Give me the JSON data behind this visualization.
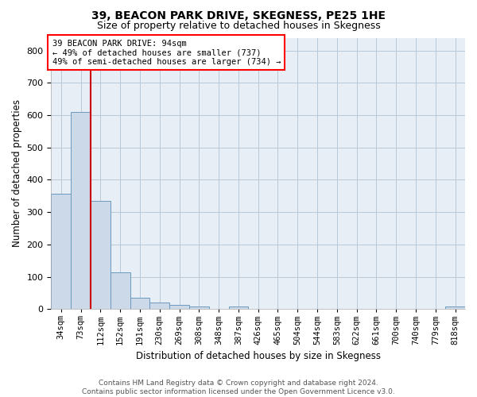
{
  "title": "39, BEACON PARK DRIVE, SKEGNESS, PE25 1HE",
  "subtitle": "Size of property relative to detached houses in Skegness",
  "xlabel": "Distribution of detached houses by size in Skegness",
  "ylabel": "Number of detached properties",
  "bar_color": "#ccd9e8",
  "bar_edge_color": "#6a9abf",
  "grid_color": "#b8c8d8",
  "background_color": "#e8eef5",
  "annotation_text": "39 BEACON PARK DRIVE: 94sqm\n← 49% of detached houses are smaller (737)\n49% of semi-detached houses are larger (734) →",
  "vline_color": "#cc0000",
  "footer_line1": "Contains HM Land Registry data © Crown copyright and database right 2024.",
  "footer_line2": "Contains public sector information licensed under the Open Government Licence v3.0.",
  "categories": [
    "34sqm",
    "73sqm",
    "112sqm",
    "152sqm",
    "191sqm",
    "230sqm",
    "269sqm",
    "308sqm",
    "348sqm",
    "387sqm",
    "426sqm",
    "465sqm",
    "504sqm",
    "544sqm",
    "583sqm",
    "622sqm",
    "661sqm",
    "700sqm",
    "740sqm",
    "779sqm",
    "818sqm"
  ],
  "values": [
    358,
    611,
    336,
    114,
    35,
    20,
    14,
    9,
    0,
    8,
    0,
    0,
    0,
    0,
    0,
    0,
    0,
    0,
    0,
    0,
    8
  ],
  "vline_index": 1.5,
  "ylim": [
    0,
    840
  ],
  "yticks": [
    0,
    100,
    200,
    300,
    400,
    500,
    600,
    700,
    800
  ],
  "title_fontsize": 10,
  "subtitle_fontsize": 9,
  "ylabel_fontsize": 8.5,
  "xlabel_fontsize": 8.5,
  "tick_fontsize": 8,
  "annot_fontsize": 7.5,
  "footer_fontsize": 6.5
}
